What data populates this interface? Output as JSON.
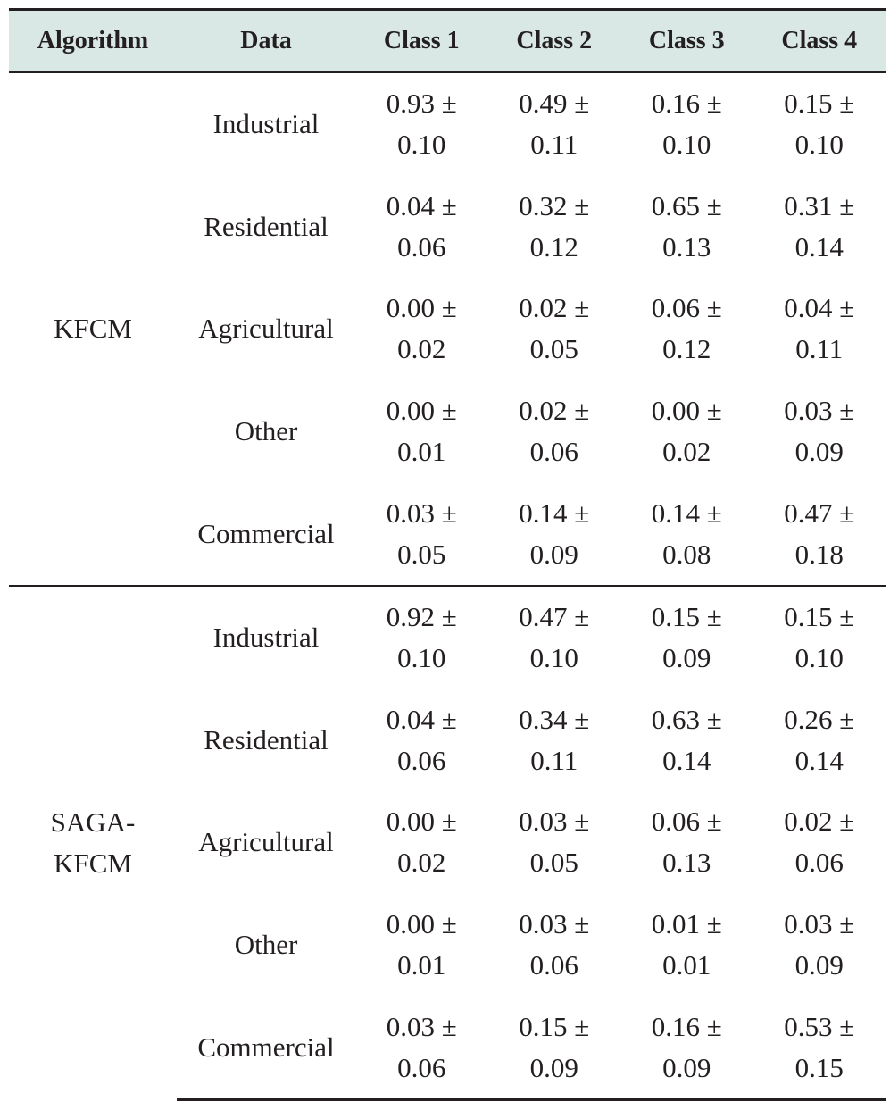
{
  "table": {
    "headers": [
      "Algorithm",
      "Data",
      "Class 1",
      "Class 2",
      "Class 3",
      "Class 4"
    ],
    "groups": [
      {
        "algorithm_lines": [
          "KFCM"
        ],
        "rows": [
          {
            "data": "Industrial",
            "values": [
              [
                "0.93 ±",
                "0.10"
              ],
              [
                "0.49 ±",
                "0.11"
              ],
              [
                "0.16 ±",
                "0.10"
              ],
              [
                "0.15 ±",
                "0.10"
              ]
            ]
          },
          {
            "data": "Residential",
            "values": [
              [
                "0.04 ±",
                "0.06"
              ],
              [
                "0.32 ±",
                "0.12"
              ],
              [
                "0.65 ±",
                "0.13"
              ],
              [
                "0.31 ±",
                "0.14"
              ]
            ]
          },
          {
            "data": "Agricultural",
            "values": [
              [
                "0.00 ±",
                "0.02"
              ],
              [
                "0.02 ±",
                "0.05"
              ],
              [
                "0.06 ±",
                "0.12"
              ],
              [
                "0.04 ±",
                "0.11"
              ]
            ]
          },
          {
            "data": "Other",
            "values": [
              [
                "0.00 ±",
                "0.01"
              ],
              [
                "0.02 ±",
                "0.06"
              ],
              [
                "0.00 ±",
                "0.02"
              ],
              [
                "0.03 ±",
                "0.09"
              ]
            ]
          },
          {
            "data": "Commercial",
            "values": [
              [
                "0.03 ±",
                "0.05"
              ],
              [
                "0.14 ±",
                "0.09"
              ],
              [
                "0.14 ±",
                "0.08"
              ],
              [
                "0.47 ±",
                "0.18"
              ]
            ]
          }
        ]
      },
      {
        "algorithm_lines": [
          "SAGA-",
          "KFCM"
        ],
        "rows": [
          {
            "data": "Industrial",
            "values": [
              [
                "0.92 ±",
                "0.10"
              ],
              [
                "0.47 ±",
                "0.10"
              ],
              [
                "0.15 ±",
                "0.09"
              ],
              [
                "0.15 ±",
                "0.10"
              ]
            ]
          },
          {
            "data": "Residential",
            "values": [
              [
                "0.04 ±",
                "0.06"
              ],
              [
                "0.34 ±",
                "0.11"
              ],
              [
                "0.63 ±",
                "0.14"
              ],
              [
                "0.26 ±",
                "0.14"
              ]
            ]
          },
          {
            "data": "Agricultural",
            "values": [
              [
                "0.00 ±",
                "0.02"
              ],
              [
                "0.03 ±",
                "0.05"
              ],
              [
                "0.06 ±",
                "0.13"
              ],
              [
                "0.02 ±",
                "0.06"
              ]
            ]
          },
          {
            "data": "Other",
            "values": [
              [
                "0.00 ±",
                "0.01"
              ],
              [
                "0.03 ±",
                "0.06"
              ],
              [
                "0.01 ±",
                "0.01"
              ],
              [
                "0.03 ±",
                "0.09"
              ]
            ]
          },
          {
            "data": "Commercial",
            "values": [
              [
                "0.03 ±",
                "0.06"
              ],
              [
                "0.15 ±",
                "0.09"
              ],
              [
                "0.16 ±",
                "0.09"
              ],
              [
                "0.53 ±",
                "0.15"
              ]
            ]
          }
        ]
      }
    ]
  },
  "colors": {
    "header_bg": "#d9e8e5",
    "text": "#231f20",
    "rule": "#231f20"
  }
}
